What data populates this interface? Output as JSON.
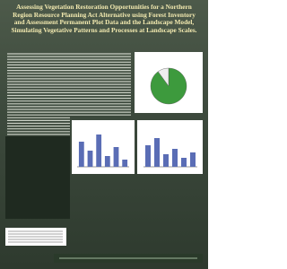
{
  "poster": {
    "title": "Assessing Vegetation Restoration Opportunities for a Northern Region Resource Planning Act Alternative using Forest Inventory and Assessment Permanent Plot Data and the Landscape Model, Simulating Vegetative Patterns and Processes at Landscape Scales."
  },
  "chart_data": [
    {
      "type": "pie",
      "values": [
        90,
        10
      ],
      "colors": [
        "#3d9a3d",
        "#eeeeee"
      ]
    },
    {
      "type": "bar",
      "categories": [
        null,
        null,
        null,
        null,
        null,
        null
      ],
      "values": [
        70,
        45,
        90,
        30,
        55,
        20
      ],
      "color": "#5a6db5",
      "ylim": [
        0,
        100
      ]
    },
    {
      "type": "bar",
      "categories": [
        null,
        null,
        null,
        null,
        null,
        null
      ],
      "values": [
        60,
        80,
        35,
        50,
        25,
        40
      ],
      "color": "#5a6db5",
      "ylim": [
        0,
        100
      ]
    }
  ]
}
